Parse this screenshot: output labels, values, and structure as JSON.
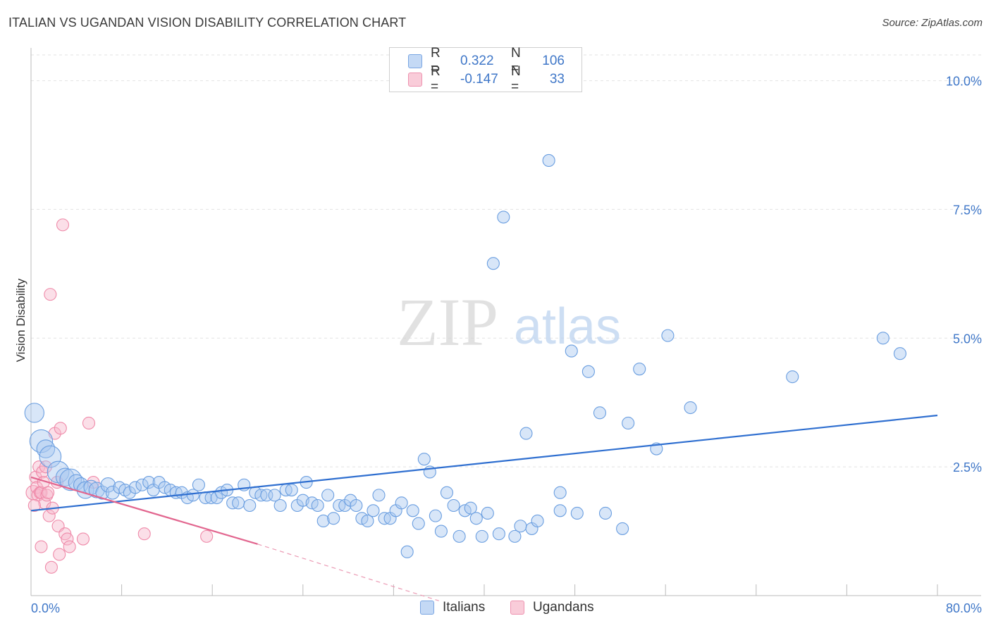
{
  "header": {
    "title": "ITALIAN VS UGANDAN VISION DISABILITY CORRELATION CHART",
    "source": "Source: ZipAtlas.com"
  },
  "watermark": {
    "zip": "ZIP",
    "atlas": "atlas"
  },
  "legend": {
    "rows": [
      {
        "r_label": "R =",
        "r_value": "0.322",
        "n_label": "N =",
        "n_value": "106",
        "color": "#a9c8f0"
      },
      {
        "r_label": "R =",
        "r_value": "-0.147",
        "n_label": "N =",
        "n_value": "33",
        "color": "#f6b8cb"
      }
    ]
  },
  "bottom_legend": {
    "italians": "Italians",
    "ugandans": "Ugandans"
  },
  "chart_data": {
    "type": "scatter",
    "ylabel": "Vision Disability",
    "xlim": [
      0,
      80
    ],
    "ylim": [
      0,
      10.5
    ],
    "x_tick_labels": {
      "min": "0.0%",
      "max": "80.0%"
    },
    "y_ticks": [
      {
        "value": 2.5,
        "label": "2.5%"
      },
      {
        "value": 5.0,
        "label": "5.0%"
      },
      {
        "value": 7.5,
        "label": "7.5%"
      },
      {
        "value": 10.0,
        "label": "10.0%"
      }
    ],
    "grid": true,
    "series": [
      {
        "name": "Italians",
        "color": "#6a9ee0",
        "fill": "#a9c8f0",
        "trend": {
          "x0": 0,
          "y0": 1.65,
          "x1": 80,
          "y1": 3.5,
          "color": "#2f6fd0"
        },
        "points": [
          [
            0.3,
            3.55,
            1.6
          ],
          [
            0.9,
            3.0,
            1.9
          ],
          [
            1.3,
            2.85,
            1.5
          ],
          [
            1.7,
            2.7,
            1.8
          ],
          [
            2.4,
            2.4,
            1.8
          ],
          [
            3.0,
            2.3,
            1.5
          ],
          [
            3.5,
            2.25,
            1.8
          ],
          [
            4.0,
            2.2,
            1.3
          ],
          [
            4.4,
            2.15,
            1.2
          ],
          [
            4.8,
            2.05,
            1.4
          ],
          [
            5.3,
            2.1,
            1.2
          ],
          [
            5.8,
            2.05,
            1.3
          ],
          [
            6.3,
            2.0,
            1.1
          ],
          [
            6.8,
            2.15,
            1.2
          ],
          [
            7.2,
            2.0,
            1.1
          ],
          [
            7.8,
            2.1,
            1.0
          ],
          [
            8.3,
            2.05,
            1.0
          ],
          [
            8.7,
            2.0,
            1.0
          ],
          [
            9.2,
            2.1,
            1.0
          ],
          [
            9.8,
            2.15,
            1.0
          ],
          [
            10.4,
            2.2,
            1.0
          ],
          [
            10.8,
            2.05,
            1.0
          ],
          [
            11.3,
            2.2,
            1.0
          ],
          [
            11.8,
            2.1,
            1.0
          ],
          [
            12.3,
            2.05,
            1.0
          ],
          [
            12.8,
            2.0,
            1.0
          ],
          [
            13.3,
            2.0,
            1.0
          ],
          [
            13.8,
            1.9,
            1.0
          ],
          [
            14.3,
            1.95,
            1.0
          ],
          [
            14.8,
            2.15,
            1.0
          ],
          [
            15.4,
            1.9,
            1.0
          ],
          [
            15.9,
            1.9,
            1.0
          ],
          [
            16.4,
            1.9,
            1.0
          ],
          [
            16.8,
            2.0,
            1.0
          ],
          [
            17.3,
            2.05,
            1.0
          ],
          [
            17.8,
            1.8,
            1.0
          ],
          [
            18.3,
            1.8,
            1.0
          ],
          [
            18.8,
            2.15,
            1.0
          ],
          [
            19.3,
            1.75,
            1.0
          ],
          [
            19.8,
            2.0,
            1.0
          ],
          [
            20.3,
            1.95,
            1.0
          ],
          [
            20.8,
            1.95,
            1.0
          ],
          [
            21.5,
            1.95,
            1.0
          ],
          [
            22.0,
            1.75,
            1.0
          ],
          [
            22.5,
            2.05,
            1.0
          ],
          [
            23.0,
            2.05,
            1.0
          ],
          [
            23.5,
            1.75,
            1.0
          ],
          [
            24.0,
            1.85,
            1.0
          ],
          [
            24.3,
            2.2,
            1.0
          ],
          [
            24.8,
            1.8,
            1.0
          ],
          [
            25.3,
            1.75,
            1.0
          ],
          [
            25.8,
            1.45,
            1.0
          ],
          [
            26.2,
            1.95,
            1.0
          ],
          [
            26.7,
            1.5,
            1.0
          ],
          [
            27.2,
            1.75,
            1.0
          ],
          [
            27.7,
            1.75,
            1.0
          ],
          [
            28.2,
            1.85,
            1.0
          ],
          [
            28.7,
            1.75,
            1.0
          ],
          [
            29.2,
            1.5,
            1.0
          ],
          [
            29.7,
            1.45,
            1.0
          ],
          [
            30.2,
            1.65,
            1.0
          ],
          [
            30.7,
            1.95,
            1.0
          ],
          [
            31.2,
            1.5,
            1.0
          ],
          [
            31.7,
            1.5,
            1.0
          ],
          [
            32.2,
            1.65,
            1.0
          ],
          [
            32.7,
            1.8,
            1.0
          ],
          [
            33.2,
            0.85,
            1.0
          ],
          [
            33.7,
            1.65,
            1.0
          ],
          [
            34.2,
            1.4,
            1.0
          ],
          [
            34.7,
            2.65,
            1.0
          ],
          [
            35.2,
            2.4,
            1.0
          ],
          [
            35.7,
            1.55,
            1.0
          ],
          [
            36.2,
            1.25,
            1.0
          ],
          [
            36.7,
            2.0,
            1.0
          ],
          [
            37.3,
            1.75,
            1.0
          ],
          [
            37.8,
            1.15,
            1.0
          ],
          [
            38.3,
            1.65,
            1.0
          ],
          [
            38.8,
            1.7,
            1.0
          ],
          [
            39.3,
            1.5,
            1.0
          ],
          [
            39.8,
            1.15,
            1.0
          ],
          [
            40.3,
            1.6,
            1.0
          ],
          [
            40.8,
            6.45,
            1.0
          ],
          [
            41.3,
            1.2,
            1.0
          ],
          [
            41.7,
            7.35,
            1.0
          ],
          [
            42.7,
            1.15,
            1.0
          ],
          [
            43.2,
            1.35,
            1.0
          ],
          [
            43.7,
            3.15,
            1.0
          ],
          [
            44.2,
            1.3,
            1.0
          ],
          [
            44.7,
            1.45,
            1.0
          ],
          [
            45.7,
            8.45,
            1.0
          ],
          [
            46.7,
            1.65,
            1.0
          ],
          [
            46.7,
            2.0,
            1.0
          ],
          [
            47.7,
            4.75,
            1.0
          ],
          [
            48.2,
            1.6,
            1.0
          ],
          [
            49.2,
            4.35,
            1.0
          ],
          [
            50.2,
            3.55,
            1.0
          ],
          [
            50.7,
            1.6,
            1.0
          ],
          [
            52.2,
            1.3,
            1.0
          ],
          [
            52.7,
            3.35,
            1.0
          ],
          [
            53.7,
            4.4,
            1.0
          ],
          [
            55.2,
            2.85,
            1.0
          ],
          [
            56.2,
            5.05,
            1.0
          ],
          [
            58.2,
            3.65,
            1.0
          ],
          [
            67.2,
            4.25,
            1.0
          ],
          [
            75.2,
            5.0,
            1.0
          ],
          [
            76.7,
            4.7,
            1.0
          ]
        ]
      },
      {
        "name": "Ugandans",
        "color": "#ef8aa9",
        "fill": "#f6b8cb",
        "trend": {
          "x0": 0,
          "y0": 2.3,
          "x1": 20,
          "y1": 1.0,
          "color": "#e2668f"
        },
        "trend_dashed": {
          "x0": 20,
          "y0": 1.0,
          "x1": 36,
          "y1": -0.1,
          "color": "#eb9ab4"
        },
        "points": [
          [
            0.2,
            2.0,
            1.2
          ],
          [
            0.4,
            2.3,
            1.0
          ],
          [
            0.5,
            2.1,
            1.0
          ],
          [
            0.6,
            1.95,
            1.0
          ],
          [
            0.7,
            2.5,
            1.0
          ],
          [
            0.8,
            2.0,
            1.0
          ],
          [
            0.9,
            2.0,
            1.0
          ],
          [
            1.0,
            2.4,
            1.0
          ],
          [
            1.1,
            2.2,
            1.0
          ],
          [
            1.2,
            1.8,
            1.0
          ],
          [
            1.3,
            2.5,
            1.0
          ],
          [
            1.4,
            1.95,
            1.0
          ],
          [
            1.5,
            2.0,
            1.0
          ],
          [
            1.6,
            1.55,
            1.0
          ],
          [
            0.3,
            1.75,
            1.0
          ],
          [
            0.9,
            0.95,
            1.0
          ],
          [
            1.7,
            5.85,
            1.0
          ],
          [
            1.8,
            0.55,
            1.0
          ],
          [
            1.9,
            1.7,
            1.0
          ],
          [
            2.1,
            3.15,
            1.0
          ],
          [
            2.3,
            2.2,
            1.0
          ],
          [
            2.4,
            1.35,
            1.0
          ],
          [
            2.5,
            0.8,
            1.0
          ],
          [
            2.6,
            3.25,
            1.0
          ],
          [
            2.8,
            7.2,
            1.0
          ],
          [
            3.0,
            1.2,
            1.0
          ],
          [
            3.2,
            1.1,
            1.0
          ],
          [
            3.4,
            0.95,
            1.0
          ],
          [
            4.6,
            1.1,
            1.0
          ],
          [
            5.1,
            3.35,
            1.0
          ],
          [
            5.5,
            2.2,
            1.0
          ],
          [
            10.0,
            1.2,
            1.0
          ],
          [
            15.5,
            1.15,
            1.0
          ]
        ]
      }
    ]
  }
}
